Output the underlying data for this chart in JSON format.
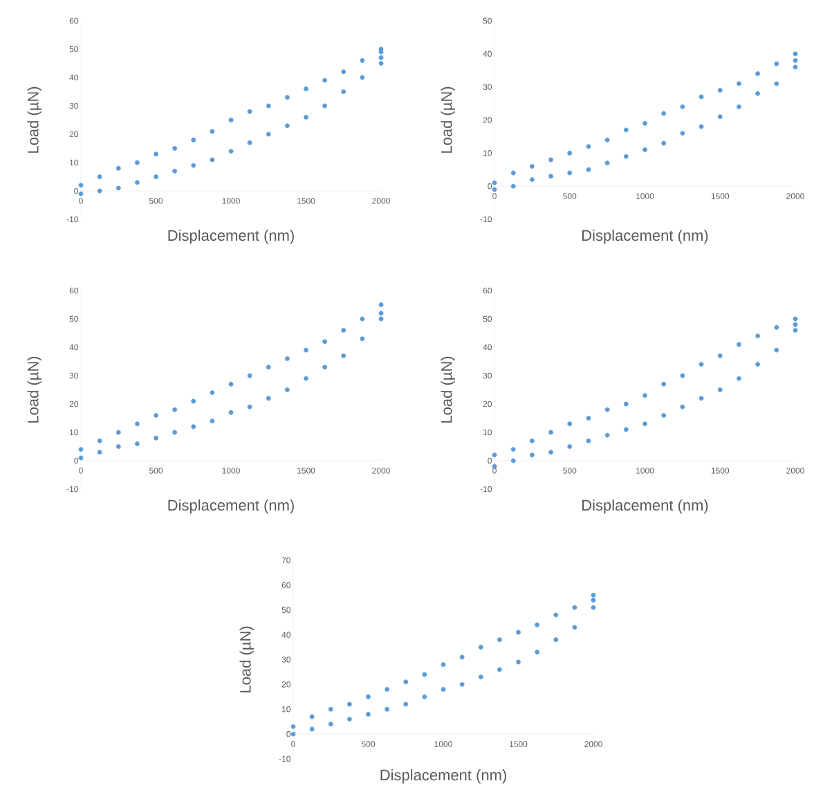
{
  "chart_data": [
    {
      "type": "scatter",
      "xlabel": "Displacement (nm)",
      "ylabel": "Load (µN)",
      "xlim": [
        0,
        2000
      ],
      "ylim": [
        -10,
        60
      ],
      "xticks": [
        0,
        500,
        1000,
        1500,
        2000
      ],
      "yticks": [
        -10,
        0,
        10,
        20,
        30,
        40,
        50,
        60
      ],
      "marker": "circle",
      "series": [
        {
          "color": "#5b9bd5",
          "x": [
            0,
            125,
            250,
            375,
            500,
            625,
            750,
            875,
            1000,
            1125,
            1250,
            1375,
            1500,
            1625,
            1750,
            1875,
            2000,
            0,
            125,
            250,
            375,
            500,
            625,
            750,
            875,
            1000,
            1125,
            1250,
            1375,
            1500,
            1625,
            1750,
            1875,
            2000,
            2000,
            2000
          ],
          "values": [
            2,
            5,
            8,
            10,
            13,
            15,
            18,
            21,
            25,
            28,
            30,
            33,
            36,
            39,
            42,
            46,
            50,
            -1,
            0,
            1,
            3,
            5,
            7,
            9,
            11,
            14,
            17,
            20,
            23,
            26,
            30,
            35,
            40,
            45,
            47,
            49
          ]
        }
      ]
    },
    {
      "type": "scatter",
      "xlabel": "Displacement (nm)",
      "ylabel": "Load (µN)",
      "xlim": [
        0,
        2000
      ],
      "ylim": [
        -10,
        50
      ],
      "xticks": [
        0,
        500,
        1000,
        1500,
        2000
      ],
      "yticks": [
        -10,
        0,
        10,
        20,
        30,
        40,
        50
      ],
      "marker": "circle",
      "series": [
        {
          "color": "#5b9bd5",
          "x": [
            0,
            125,
            250,
            375,
            500,
            625,
            750,
            875,
            1000,
            1125,
            1250,
            1375,
            1500,
            1625,
            1750,
            1875,
            2000,
            0,
            125,
            250,
            375,
            500,
            625,
            750,
            875,
            1000,
            1125,
            1250,
            1375,
            1500,
            1625,
            1750,
            1875,
            2000,
            2000
          ],
          "values": [
            1,
            4,
            6,
            8,
            10,
            12,
            14,
            17,
            19,
            22,
            24,
            27,
            29,
            31,
            34,
            37,
            40,
            -1,
            0,
            2,
            3,
            4,
            5,
            7,
            9,
            11,
            13,
            16,
            18,
            21,
            24,
            28,
            31,
            36,
            38
          ]
        }
      ]
    },
    {
      "type": "scatter",
      "xlabel": "Displacement (nm)",
      "ylabel": "Load (µN)",
      "xlim": [
        0,
        2000
      ],
      "ylim": [
        -10,
        60
      ],
      "xticks": [
        0,
        500,
        1000,
        1500,
        2000
      ],
      "yticks": [
        -10,
        0,
        10,
        20,
        30,
        40,
        50,
        60
      ],
      "marker": "circle",
      "series": [
        {
          "color": "#5b9bd5",
          "x": [
            0,
            125,
            250,
            375,
            500,
            625,
            750,
            875,
            1000,
            1125,
            1250,
            1375,
            1500,
            1625,
            1750,
            1875,
            2000,
            0,
            125,
            250,
            375,
            500,
            625,
            750,
            875,
            1000,
            1125,
            1250,
            1375,
            1500,
            1625,
            1750,
            1875,
            2000,
            2000
          ],
          "values": [
            4,
            7,
            10,
            13,
            16,
            18,
            21,
            24,
            27,
            30,
            33,
            36,
            39,
            42,
            46,
            50,
            55,
            1,
            3,
            5,
            6,
            8,
            10,
            12,
            14,
            17,
            19,
            22,
            25,
            29,
            33,
            37,
            43,
            50,
            52
          ]
        }
      ]
    },
    {
      "type": "scatter",
      "xlabel": "Displacement (nm)",
      "ylabel": "Load (µN)",
      "xlim": [
        0,
        2000
      ],
      "ylim": [
        -10,
        60
      ],
      "xticks": [
        0,
        500,
        1000,
        1500,
        2000
      ],
      "yticks": [
        -10,
        0,
        10,
        20,
        30,
        40,
        50,
        60
      ],
      "marker": "circle",
      "series": [
        {
          "color": "#5b9bd5",
          "x": [
            0,
            125,
            250,
            375,
            500,
            625,
            750,
            875,
            1000,
            1125,
            1250,
            1375,
            1500,
            1625,
            1750,
            1875,
            2000,
            0,
            125,
            250,
            375,
            500,
            625,
            750,
            875,
            1000,
            1125,
            1250,
            1375,
            1500,
            1625,
            1750,
            1875,
            2000,
            2000
          ],
          "values": [
            2,
            4,
            7,
            10,
            13,
            15,
            18,
            20,
            23,
            27,
            30,
            34,
            37,
            41,
            44,
            47,
            50,
            -2,
            0,
            2,
            3,
            5,
            7,
            9,
            11,
            13,
            16,
            19,
            22,
            25,
            29,
            34,
            39,
            46,
            48
          ]
        }
      ]
    },
    {
      "type": "scatter",
      "xlabel": "Displacement (nm)",
      "ylabel": "Load (µN)",
      "xlim": [
        0,
        2000
      ],
      "ylim": [
        -10,
        70
      ],
      "xticks": [
        0,
        500,
        1000,
        1500,
        2000
      ],
      "yticks": [
        -10,
        0,
        10,
        20,
        30,
        40,
        50,
        60,
        70
      ],
      "marker": "circle",
      "series": [
        {
          "color": "#5b9bd5",
          "x": [
            0,
            125,
            250,
            375,
            500,
            625,
            750,
            875,
            1000,
            1125,
            1250,
            1375,
            1500,
            1625,
            1750,
            1875,
            2000,
            0,
            125,
            250,
            375,
            500,
            625,
            750,
            875,
            1000,
            1125,
            1250,
            1375,
            1500,
            1625,
            1750,
            1875,
            2000,
            2000
          ],
          "values": [
            3,
            7,
            10,
            12,
            15,
            18,
            21,
            24,
            28,
            31,
            35,
            38,
            41,
            44,
            48,
            51,
            56,
            0,
            2,
            4,
            6,
            8,
            10,
            12,
            15,
            18,
            20,
            23,
            26,
            29,
            33,
            38,
            43,
            51,
            54
          ]
        }
      ]
    }
  ]
}
